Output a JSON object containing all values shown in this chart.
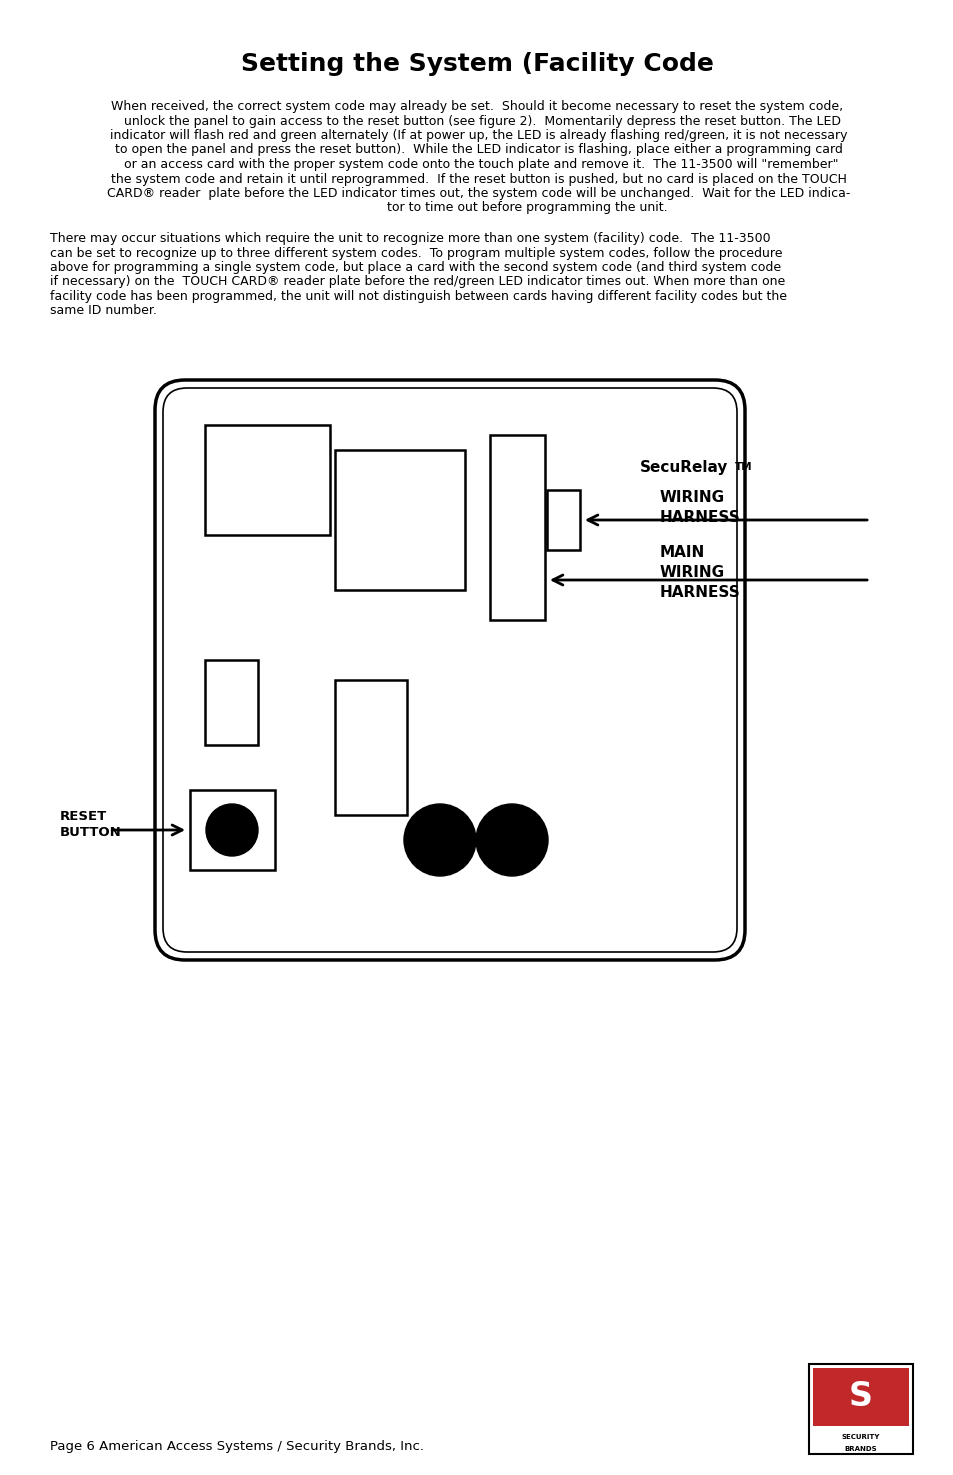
{
  "title": "Setting the System (Facility Code",
  "title_fontsize": 18,
  "body_text1_lines": [
    "When received, the correct system code may already be set.  Should it become necessary to reset the system code,",
    "   unlock the panel to gain access to the reset button (see figure 2).  Momentarily depress the reset button. The LED",
    " indicator will flash red and green alternately (If at power up, the LED is already flashing red/green, it is not necessary",
    " to open the panel and press the reset button).  While the LED indicator is flashing, place either a programming card",
    "  or an access card with the proper system code onto the touch plate and remove it.  The 11-3500 will \"remember\"",
    " the system code and retain it until reprogrammed.  If the reset button is pushed, but no card is placed on the TOUCH",
    " CARD® reader  plate before the LED indicator times out, the system code will be unchanged.  Wait for the LED indica-",
    "                         tor to time out before programming the unit."
  ],
  "body_text2_lines": [
    "There may occur situations which require the unit to recognize more than one system (facility) code.  The 11-3500",
    "can be set to recognize up to three different system codes.  To program multiple system codes, follow the procedure",
    "above for programming a single system code, but place a card with the second system code (and third system code",
    "if necessary) on the  TOUCH CARD® reader plate before the red/green LED indicator times out. When more than one",
    "facility code has been programmed, the unit will not distinguish between cards having different facility codes but the",
    "same ID number."
  ],
  "footer_text": "Page 6 American Access Systems / Security Brands, Inc.",
  "background_color": "#ffffff",
  "text_color": "#000000",
  "body_fontsize": 9.0
}
